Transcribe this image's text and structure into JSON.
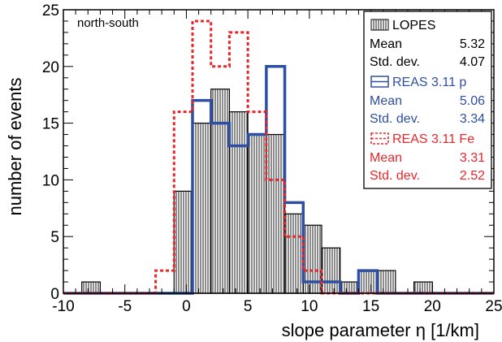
{
  "chart_data": {
    "type": "histogram",
    "xlabel": "slope parameter  η  [1/km]",
    "ylabel": "number of events",
    "annotation": "north-south",
    "xlim": [
      -10,
      25
    ],
    "ylim": [
      0,
      25
    ],
    "x_ticks": [
      -10,
      -5,
      0,
      5,
      10,
      15,
      20,
      25
    ],
    "y_ticks": [
      0,
      5,
      10,
      15,
      20,
      25
    ],
    "bin_width": 1.5,
    "bins_start": [
      -10,
      -8.5,
      -7,
      -5.5,
      -4,
      -2.5,
      -1,
      0.5,
      2,
      3.5,
      5,
      6.5,
      8,
      9.5,
      11,
      12.5,
      14,
      15.5,
      17,
      18.5,
      20,
      21.5,
      23
    ],
    "grid": false,
    "legend_position": "top-right",
    "series": [
      {
        "name": "LOPES",
        "style": "hatched",
        "color": "#000000",
        "values": [
          0,
          1,
          0,
          0,
          0,
          0,
          9,
          15,
          18,
          16,
          14,
          14,
          7,
          6,
          4,
          1,
          2,
          2,
          0,
          1,
          0,
          0,
          0
        ],
        "stats": [
          {
            "label": "Mean",
            "value": "5.32"
          },
          {
            "label": "Std. dev.",
            "value": "4.07"
          }
        ]
      },
      {
        "name": "REAS 3.11 p",
        "style": "solid",
        "color": "#2e4fa3",
        "values": [
          0,
          0,
          0,
          0,
          0,
          0,
          0,
          17,
          15,
          13,
          14,
          20,
          8,
          1,
          1,
          0,
          2,
          0,
          0,
          0,
          0,
          0,
          0
        ],
        "stats": [
          {
            "label": "Mean",
            "value": "5.06"
          },
          {
            "label": "Std. dev.",
            "value": "3.34"
          }
        ]
      },
      {
        "name": "REAS 3.11 Fe",
        "style": "dashed",
        "color": "#e8262b",
        "values": [
          0,
          0,
          0,
          0,
          0,
          2,
          16,
          24,
          20,
          23,
          16,
          10,
          5,
          2,
          0,
          0,
          0,
          0,
          0,
          0,
          0,
          0,
          0
        ],
        "stats": [
          {
            "label": "Mean",
            "value": "3.31"
          },
          {
            "label": "Std. dev.",
            "value": "2.52"
          }
        ]
      }
    ]
  }
}
